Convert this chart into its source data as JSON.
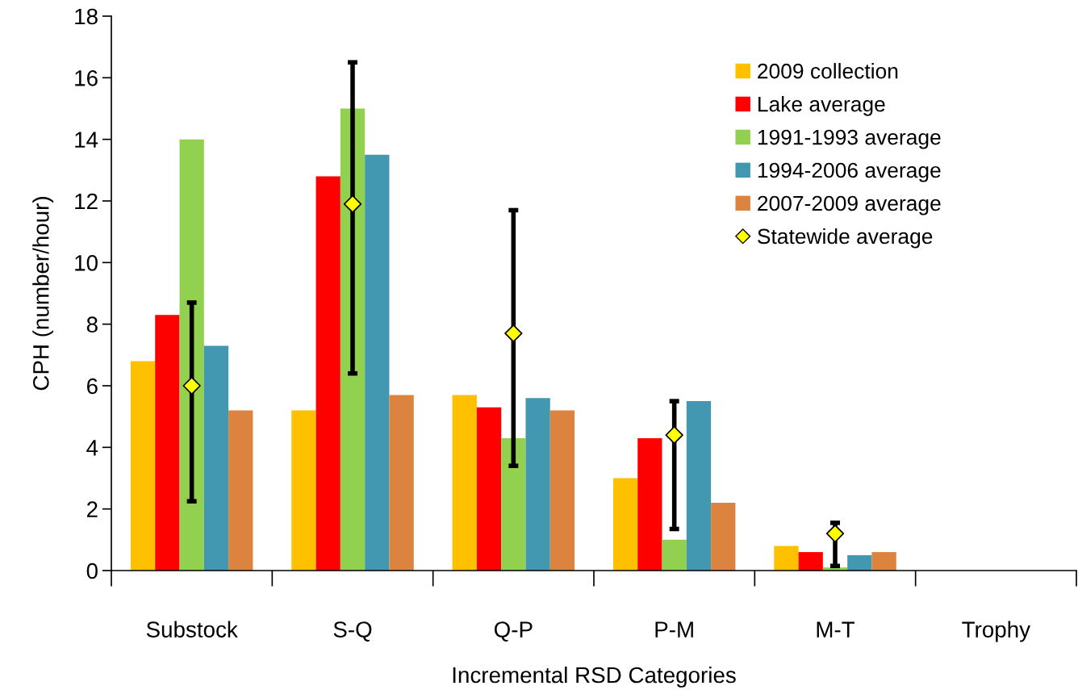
{
  "chart_data": {
    "type": "bar",
    "xlabel": "Incremental RSD Categories",
    "ylabel": "CPH (number/hour)",
    "categories": [
      "Substock",
      "S-Q",
      "Q-P",
      "P-M",
      "M-T",
      "Trophy"
    ],
    "series": [
      {
        "name": "2009 collection",
        "color": "#ffc000",
        "values": [
          6.8,
          5.2,
          5.7,
          3.0,
          0.8,
          0
        ]
      },
      {
        "name": "Lake average",
        "color": "#ff0000",
        "values": [
          8.3,
          12.8,
          5.3,
          4.3,
          0.6,
          0
        ]
      },
      {
        "name": "1991-1993 average",
        "color": "#92d050",
        "values": [
          14.0,
          15.0,
          4.3,
          1.0,
          0.1,
          0
        ]
      },
      {
        "name": "1994-2006 average",
        "color": "#4198b0",
        "values": [
          7.3,
          13.5,
          5.6,
          5.5,
          0.5,
          0
        ]
      },
      {
        "name": "2007-2009 average",
        "color": "#dd8340",
        "values": [
          5.2,
          5.7,
          5.2,
          2.2,
          0.6,
          0
        ]
      },
      {
        "name": "Statewide average",
        "type": "scatter",
        "color": "#ffff00",
        "x": [
          "Substock",
          "S-Q",
          "Q-P",
          "P-M",
          "M-T",
          "Trophy"
        ],
        "values": [
          6.0,
          11.9,
          7.7,
          4.4,
          1.2,
          null
        ],
        "errors": [
          [
            2.25,
            8.7
          ],
          [
            6.4,
            16.5
          ],
          [
            3.4,
            11.7
          ],
          [
            1.35,
            5.5
          ],
          [
            0.15,
            1.55
          ],
          null
        ]
      }
    ],
    "ylim": [
      0,
      18
    ],
    "yticks": [
      0,
      2,
      4,
      6,
      8,
      10,
      12,
      14,
      16,
      18
    ],
    "legend": "top right",
    "marker": "diamond",
    "grid": false
  }
}
